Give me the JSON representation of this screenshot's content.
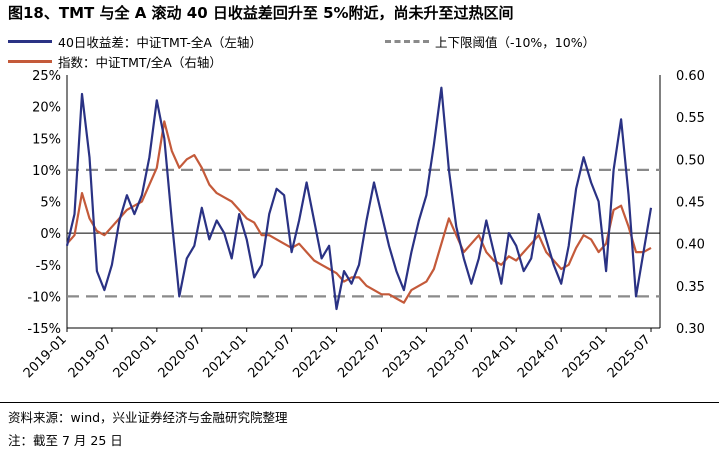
{
  "title": "图18、TMT 与全 A 滚动 40 日收益差回升至 5%附近，尚未升至过热区间",
  "legend": {
    "blue": "40日收益差：中证TMT-全A（左轴）",
    "gray": "上下限阈值（-10%，10%）",
    "red": "指数：中证TMT/全A（右轴）"
  },
  "footer": {
    "source": "资料来源：wind，兴业证券经济与金融研究院整理",
    "note": "注：截至 7 月 25 日"
  },
  "colors": {
    "blue": "#2a3284",
    "red": "#c45a3a",
    "gray": "#8a8a8a"
  },
  "chart_data": {
    "type": "line",
    "x_ticks": [
      "2019-01",
      "2019-07",
      "2020-01",
      "2020-07",
      "2021-01",
      "2021-07",
      "2022-01",
      "2022-07",
      "2023-01",
      "2023-07",
      "2024-01",
      "2024-07",
      "2025-01",
      "2025-07"
    ],
    "y_left": {
      "ticks": [
        "25%",
        "20%",
        "15%",
        "10%",
        "5%",
        "0%",
        "-5%",
        "-10%",
        "-15%"
      ],
      "range": [
        -15,
        25
      ]
    },
    "y_right": {
      "ticks": [
        "0.60",
        "0.55",
        "0.50",
        "0.45",
        "0.40",
        "0.35",
        "0.30"
      ],
      "range": [
        0.3,
        0.6
      ]
    },
    "thresholds": [
      10,
      -10
    ],
    "series": [
      {
        "name": "40日收益差：中证TMT-全A（左轴）",
        "axis": "left",
        "x": [
          "2019-01",
          "2019-02",
          "2019-03",
          "2019-04",
          "2019-05",
          "2019-06",
          "2019-07",
          "2019-08",
          "2019-09",
          "2019-10",
          "2019-11",
          "2019-12",
          "2020-01",
          "2020-02",
          "2020-03",
          "2020-04",
          "2020-05",
          "2020-06",
          "2020-07",
          "2020-08",
          "2020-09",
          "2020-10",
          "2020-11",
          "2020-12",
          "2021-01",
          "2021-02",
          "2021-03",
          "2021-04",
          "2021-05",
          "2021-06",
          "2021-07",
          "2021-08",
          "2021-09",
          "2021-10",
          "2021-11",
          "2021-12",
          "2022-01",
          "2022-02",
          "2022-03",
          "2022-04",
          "2022-05",
          "2022-06",
          "2022-07",
          "2022-08",
          "2022-09",
          "2022-10",
          "2022-11",
          "2022-12",
          "2023-01",
          "2023-02",
          "2023-03",
          "2023-04",
          "2023-05",
          "2023-06",
          "2023-07",
          "2023-08",
          "2023-09",
          "2023-10",
          "2023-11",
          "2023-12",
          "2024-01",
          "2024-02",
          "2024-03",
          "2024-04",
          "2024-05",
          "2024-06",
          "2024-07",
          "2024-08",
          "2024-09",
          "2024-10",
          "2024-11",
          "2024-12",
          "2025-01",
          "2025-02",
          "2025-03",
          "2025-04",
          "2025-05",
          "2025-06",
          "2025-07"
        ],
        "values": [
          -2,
          3,
          22,
          12,
          -6,
          -9,
          -5,
          2,
          6,
          3,
          6,
          12,
          21,
          15,
          2,
          -10,
          -4,
          -2,
          4,
          -1,
          2,
          0,
          -4,
          3,
          -1,
          -7,
          -5,
          3,
          7,
          6,
          -3,
          2,
          8,
          2,
          -4,
          -2,
          -12,
          -6,
          -8,
          -5,
          2,
          8,
          3,
          -2,
          -6,
          -9,
          -3,
          2,
          6,
          14,
          23,
          10,
          1,
          -4,
          -8,
          -4,
          2,
          -3,
          -8,
          0,
          -2,
          -6,
          -4,
          3,
          -1,
          -5,
          -8,
          -2,
          7,
          12,
          8,
          5,
          -6,
          10,
          18,
          6,
          -10,
          -3,
          4
        ]
      },
      {
        "name": "指数：中证TMT/全A（右轴）",
        "axis": "right",
        "x": [
          "2019-01",
          "2019-02",
          "2019-03",
          "2019-04",
          "2019-05",
          "2019-06",
          "2019-07",
          "2019-08",
          "2019-09",
          "2019-10",
          "2019-11",
          "2019-12",
          "2020-01",
          "2020-02",
          "2020-03",
          "2020-04",
          "2020-05",
          "2020-06",
          "2020-07",
          "2020-08",
          "2020-09",
          "2020-10",
          "2020-11",
          "2020-12",
          "2021-01",
          "2021-02",
          "2021-03",
          "2021-04",
          "2021-05",
          "2021-06",
          "2021-07",
          "2021-08",
          "2021-09",
          "2021-10",
          "2021-11",
          "2021-12",
          "2022-01",
          "2022-02",
          "2022-03",
          "2022-04",
          "2022-05",
          "2022-06",
          "2022-07",
          "2022-08",
          "2022-09",
          "2022-10",
          "2022-11",
          "2022-12",
          "2023-01",
          "2023-02",
          "2023-03",
          "2023-04",
          "2023-05",
          "2023-06",
          "2023-07",
          "2023-08",
          "2023-09",
          "2023-10",
          "2023-11",
          "2023-12",
          "2024-01",
          "2024-02",
          "2024-03",
          "2024-04",
          "2024-05",
          "2024-06",
          "2024-07",
          "2024-08",
          "2024-09",
          "2024-10",
          "2024-11",
          "2024-12",
          "2025-01",
          "2025-02",
          "2025-03",
          "2025-04",
          "2025-05",
          "2025-06",
          "2025-07"
        ],
        "values": [
          0.4,
          0.41,
          0.46,
          0.43,
          0.415,
          0.41,
          0.42,
          0.43,
          0.44,
          0.445,
          0.45,
          0.47,
          0.49,
          0.545,
          0.51,
          0.49,
          0.5,
          0.505,
          0.49,
          0.47,
          0.46,
          0.455,
          0.45,
          0.44,
          0.43,
          0.425,
          0.41,
          0.41,
          0.405,
          0.4,
          0.395,
          0.4,
          0.39,
          0.38,
          0.375,
          0.37,
          0.365,
          0.355,
          0.36,
          0.36,
          0.35,
          0.345,
          0.34,
          0.34,
          0.335,
          0.33,
          0.345,
          0.35,
          0.355,
          0.37,
          0.4,
          0.43,
          0.41,
          0.39,
          0.4,
          0.41,
          0.39,
          0.38,
          0.375,
          0.385,
          0.38,
          0.39,
          0.4,
          0.41,
          0.39,
          0.38,
          0.37,
          0.375,
          0.395,
          0.41,
          0.405,
          0.39,
          0.4,
          0.44,
          0.445,
          0.42,
          0.39,
          0.39,
          0.395
        ]
      }
    ]
  }
}
